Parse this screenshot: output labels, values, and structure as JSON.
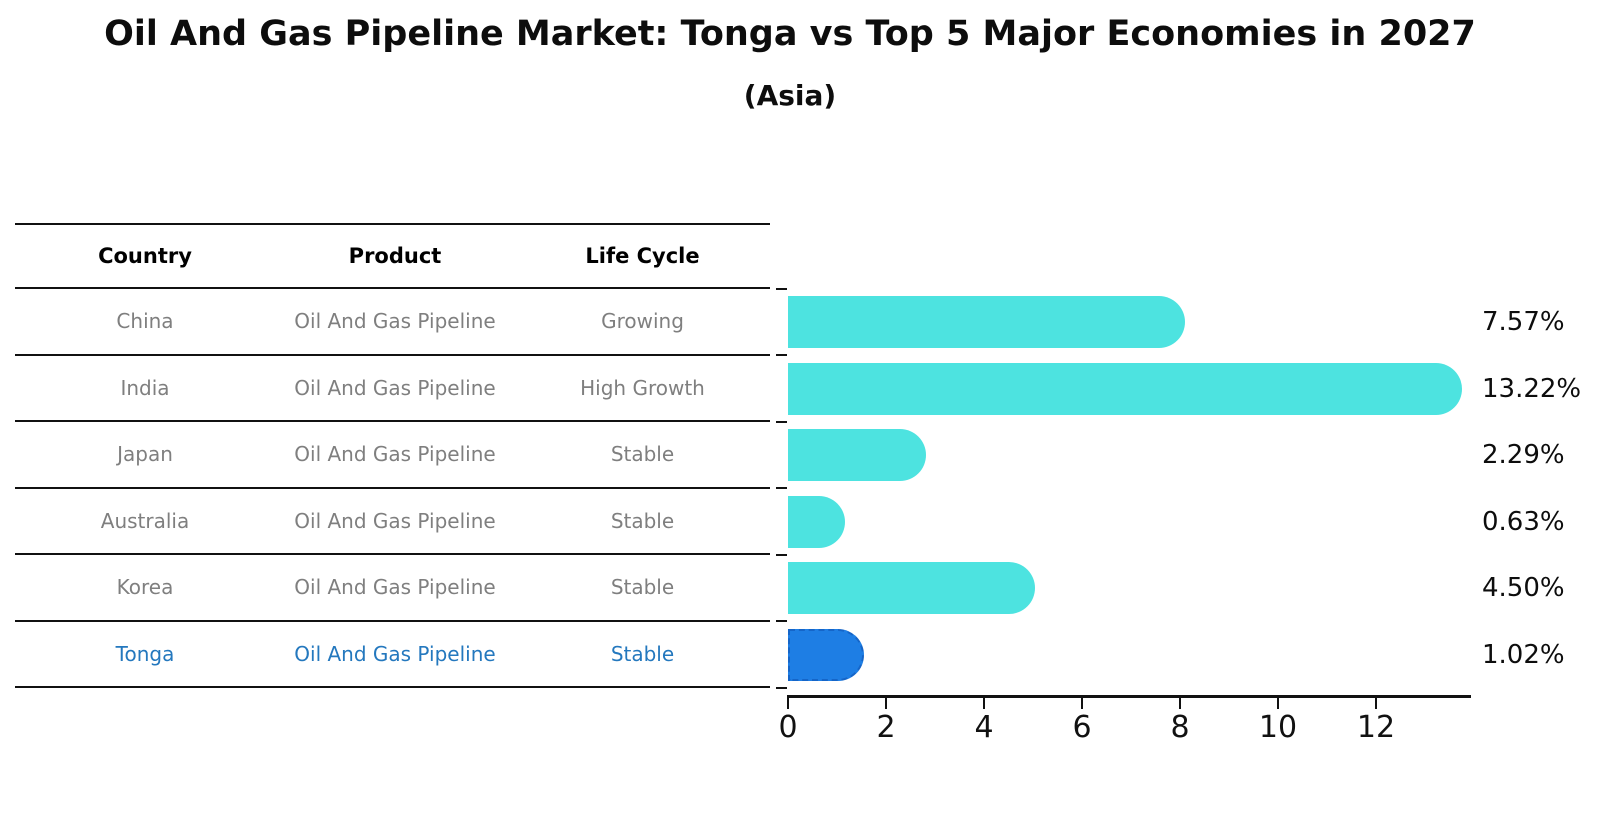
{
  "title": "Oil And Gas Pipeline Market: Tonga vs Top 5 Major Economies in 2027",
  "subtitle": "(Asia)",
  "table": {
    "headers": {
      "country": "Country",
      "product": "Product",
      "life_cycle": "Life Cycle"
    },
    "rows": [
      {
        "country": "China",
        "product": "Oil And Gas Pipeline",
        "life_cycle": "Growing",
        "highlight": false
      },
      {
        "country": "India",
        "product": "Oil And Gas Pipeline",
        "life_cycle": "High Growth",
        "highlight": false
      },
      {
        "country": "Japan",
        "product": "Oil And Gas Pipeline",
        "life_cycle": "Stable",
        "highlight": false
      },
      {
        "country": "Australia",
        "product": "Oil And Gas Pipeline",
        "life_cycle": "Stable",
        "highlight": false
      },
      {
        "country": "Korea",
        "product": "Oil And Gas Pipeline",
        "life_cycle": "Stable",
        "highlight": false
      },
      {
        "country": "Tonga",
        "product": "Oil And Gas Pipeline",
        "life_cycle": "Stable",
        "highlight": true
      }
    ]
  },
  "chart_data": {
    "type": "bar",
    "orientation": "horizontal",
    "categories": [
      "China",
      "India",
      "Japan",
      "Australia",
      "Korea",
      "Tonga"
    ],
    "values": [
      7.57,
      13.22,
      2.29,
      0.63,
      4.5,
      1.02
    ],
    "value_labels": [
      "7.57%",
      "13.22%",
      "2.29%",
      "0.63%",
      "4.50%",
      "1.02%"
    ],
    "xticks": [
      "0",
      "2",
      "4",
      "6",
      "8",
      "10",
      "12"
    ],
    "xlim": [
      0,
      13.94
    ],
    "grid": false,
    "legend": "none",
    "bar_color": "#4de3e0",
    "highlight_index": 5,
    "highlight_bar_color": "#1e7ee4",
    "highlight_border_color": "#1565c8",
    "highlight_text_color": "#2478be"
  }
}
